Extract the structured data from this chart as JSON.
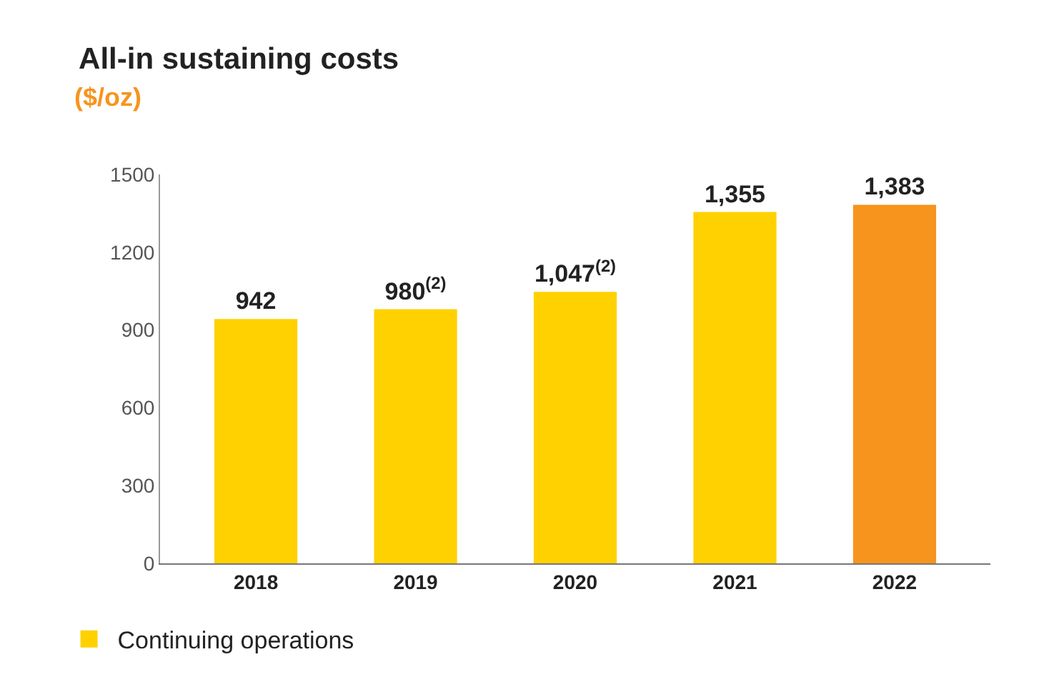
{
  "chart_data": {
    "type": "bar",
    "title": "All-in sustaining costs",
    "subtitle": "($/oz)",
    "categories": [
      "2018",
      "2019",
      "2020",
      "2021",
      "2022"
    ],
    "series": [
      {
        "name": "Continuing operations",
        "colors": [
          "#ffd100",
          "#ffd100",
          "#ffd100",
          "#ffd100",
          "#f7941d"
        ],
        "values": [
          942,
          980,
          1047,
          1355,
          1383
        ],
        "value_labels": [
          "942",
          "980$^{(2)}$",
          "1,047$^{(2)}$",
          "1,355",
          "1,383"
        ]
      }
    ],
    "ylim": [
      0,
      1500
    ],
    "yticks": [
      0,
      300,
      600,
      900,
      1200,
      1500
    ],
    "legend": "bottom left"
  }
}
